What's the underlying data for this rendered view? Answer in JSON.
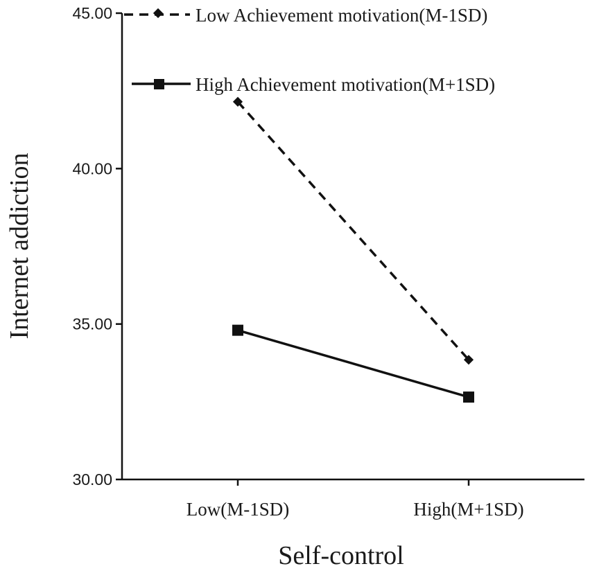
{
  "chart_data": {
    "type": "line",
    "categories": [
      "Low(M-1SD)",
      "High(M+1SD)"
    ],
    "series": [
      {
        "name": "Low Achievement motivation(M-1SD)",
        "values": [
          42.15,
          33.85
        ],
        "line_style": "dashed",
        "marker": "diamond",
        "color": "#111111"
      },
      {
        "name": "High Achievement motivation(M+1SD)",
        "values": [
          34.8,
          32.65
        ],
        "line_style": "solid",
        "marker": "square",
        "color": "#111111"
      }
    ],
    "xlabel": "Self-control",
    "ylabel": "Internet addiction",
    "ylim": [
      30,
      45
    ],
    "yticks": [
      "30.00",
      "35.00",
      "40.00",
      "45.00"
    ],
    "ytick_values": [
      30,
      35,
      40,
      45
    ],
    "grid": false,
    "legend_position": "top-right"
  }
}
